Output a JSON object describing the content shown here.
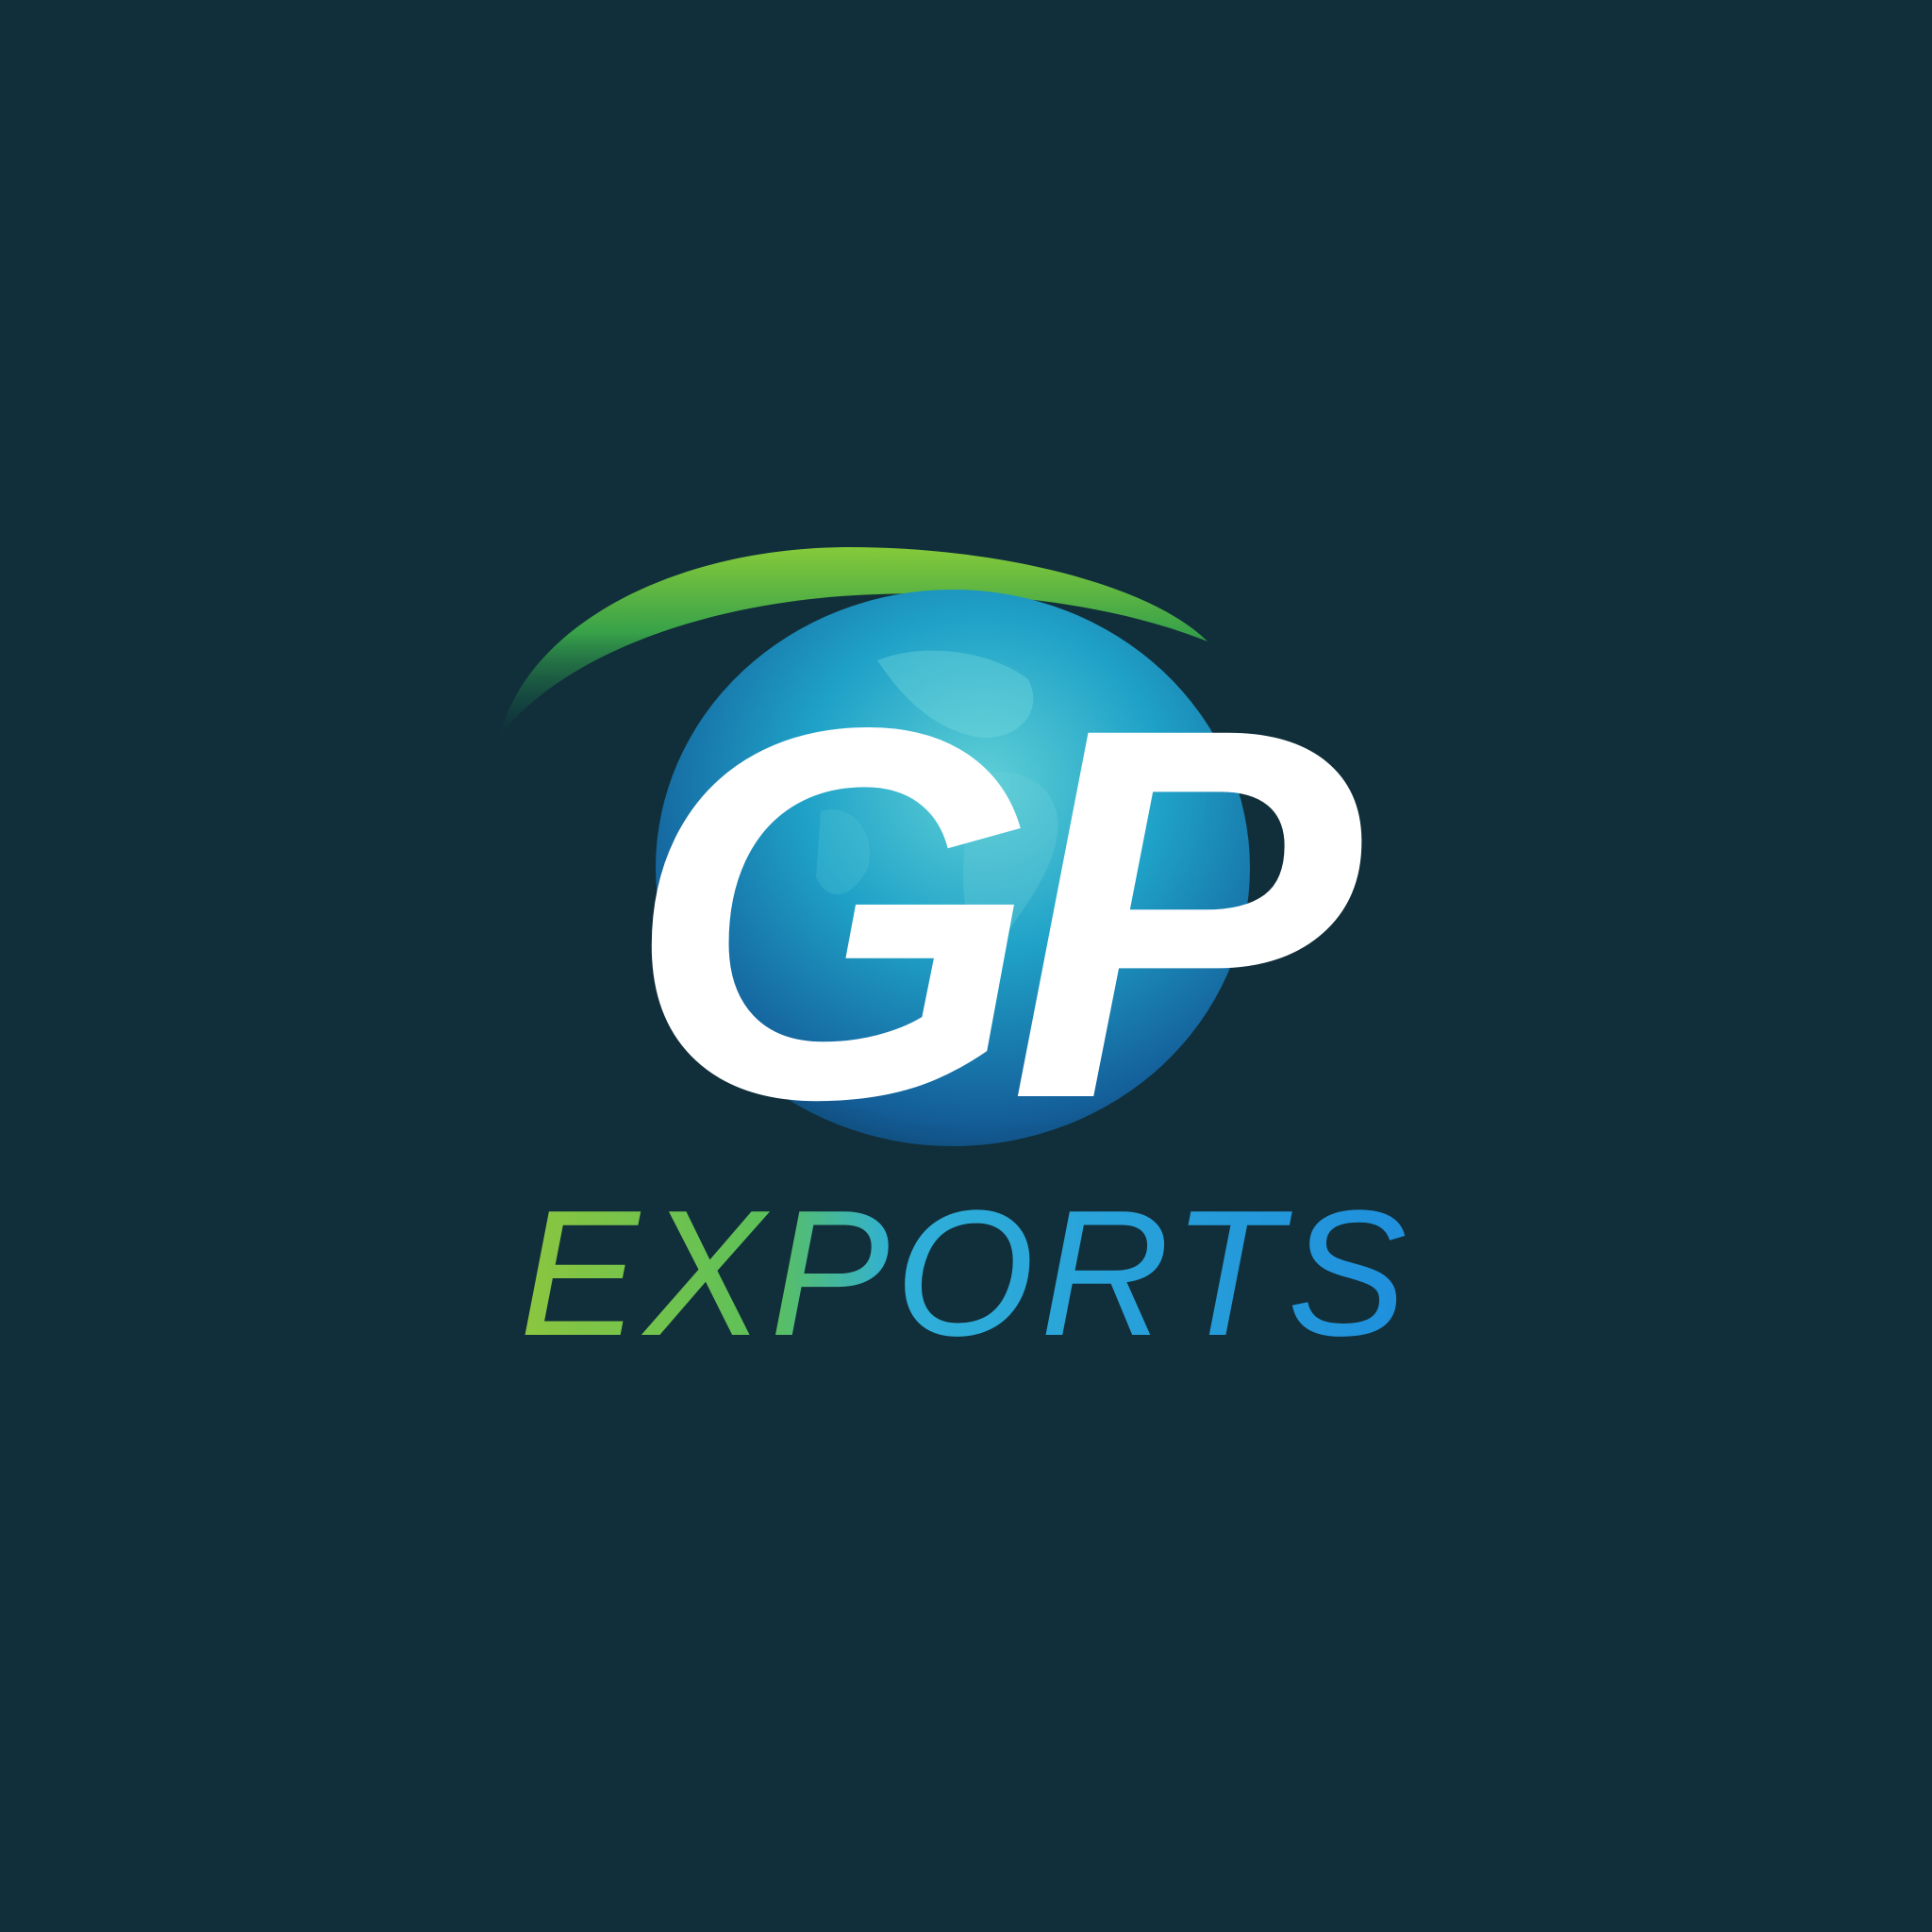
{
  "brand": {
    "monogram": "GP",
    "wordmark": "EXPORTS"
  },
  "colors": {
    "background": "#112f3a",
    "monogram_fill": "#ffffff",
    "globe_green": "#6bc43a",
    "globe_teal": "#27a8b8",
    "globe_blue": "#1e6ea8",
    "wordmark_green": "#8cc63f",
    "wordmark_blue": "#2aa8e6"
  }
}
